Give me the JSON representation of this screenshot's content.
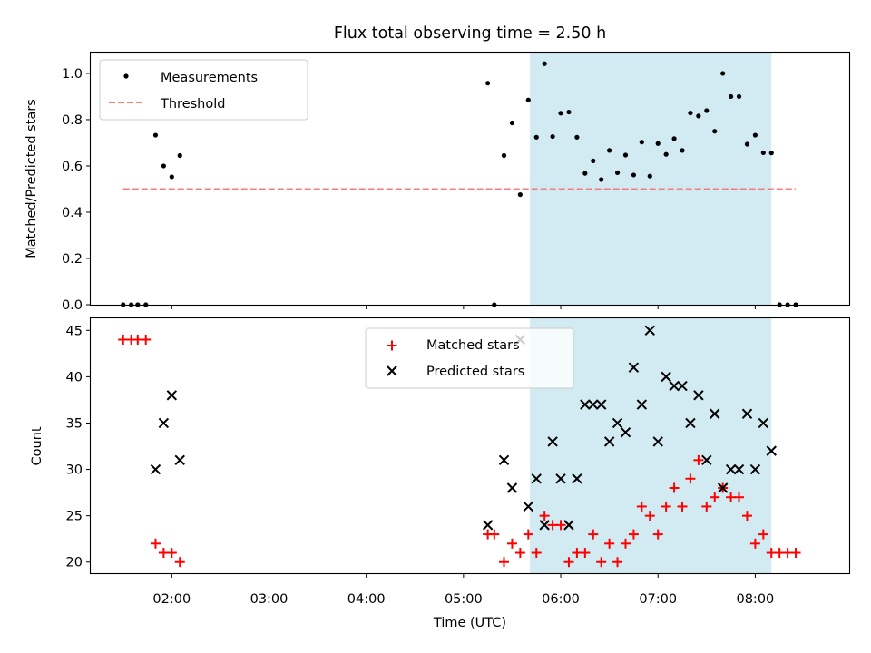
{
  "chart_data": [
    {
      "type": "scatter",
      "title": "Flux total observing time = 2.50 h",
      "ylabel": "Matched/Predicted stars",
      "xlim": [
        "01:10",
        "08:58"
      ],
      "ylim": [
        0,
        1.09
      ],
      "y_ticks": [
        0.0,
        0.2,
        0.4,
        0.6,
        0.8,
        1.0
      ],
      "y_tick_labels": [
        "0.0",
        "0.2",
        "0.4",
        "0.6",
        "0.8",
        "1.0"
      ],
      "grid": false,
      "legend_position": "top-left",
      "observing_span": {
        "start": "05:41",
        "end": "08:10",
        "color": "#add8e6"
      },
      "series": [
        {
          "name": "Measurements",
          "color": "#000000",
          "marker": "dot",
          "points": [
            [
              "01:30",
              0.0
            ],
            [
              "01:35",
              0.0
            ],
            [
              "01:39",
              0.0
            ],
            [
              "01:44",
              0.0
            ],
            [
              "01:50",
              0.733
            ],
            [
              "01:55",
              0.6
            ],
            [
              "02:00",
              0.553
            ],
            [
              "02:05",
              0.645
            ],
            [
              "05:15",
              0.958
            ],
            [
              "05:19",
              0.0
            ],
            [
              "05:25",
              0.645
            ],
            [
              "05:30",
              0.786
            ],
            [
              "05:35",
              0.476
            ],
            [
              "05:40",
              0.885
            ],
            [
              "05:45",
              0.724
            ],
            [
              "05:50",
              1.042
            ],
            [
              "05:55",
              0.727
            ],
            [
              "06:00",
              0.828
            ],
            [
              "06:05",
              0.833
            ],
            [
              "06:10",
              0.724
            ],
            [
              "06:15",
              0.568
            ],
            [
              "06:20",
              0.622
            ],
            [
              "06:25",
              0.541
            ],
            [
              "06:30",
              0.667
            ],
            [
              "06:35",
              0.571
            ],
            [
              "06:40",
              0.647
            ],
            [
              "06:45",
              0.561
            ],
            [
              "06:50",
              0.703
            ],
            [
              "06:55",
              0.556
            ],
            [
              "07:00",
              0.697
            ],
            [
              "07:05",
              0.65
            ],
            [
              "07:10",
              0.718
            ],
            [
              "07:15",
              0.667
            ],
            [
              "07:20",
              0.829
            ],
            [
              "07:25",
              0.816
            ],
            [
              "07:30",
              0.839
            ],
            [
              "07:35",
              0.75
            ],
            [
              "07:40",
              1.0
            ],
            [
              "07:45",
              0.9
            ],
            [
              "07:50",
              0.9
            ],
            [
              "07:55",
              0.694
            ],
            [
              "08:00",
              0.733
            ],
            [
              "08:05",
              0.657
            ],
            [
              "08:10",
              0.656
            ],
            [
              "08:15",
              0.0
            ],
            [
              "08:20",
              0.0
            ],
            [
              "08:25",
              0.0
            ]
          ]
        },
        {
          "name": "Threshold",
          "color": "#f08080",
          "style": "dashed",
          "points": [
            [
              "01:30",
              0.5
            ],
            [
              "08:25",
              0.5
            ]
          ]
        }
      ]
    },
    {
      "type": "scatter",
      "xlabel": "Time (UTC)",
      "ylabel": "Count",
      "xlim": [
        "01:10",
        "08:58"
      ],
      "ylim": [
        18.8,
        46.3
      ],
      "x_ticks": [
        "02:00",
        "03:00",
        "04:00",
        "05:00",
        "06:00",
        "07:00",
        "08:00"
      ],
      "y_ticks": [
        20,
        25,
        30,
        35,
        40,
        45
      ],
      "y_tick_labels": [
        "20",
        "25",
        "30",
        "35",
        "40",
        "45"
      ],
      "grid": false,
      "legend_position": "top-center",
      "observing_span": {
        "start": "05:41",
        "end": "08:10",
        "color": "#add8e6"
      },
      "series": [
        {
          "name": "Matched stars",
          "color": "#ff0000",
          "marker": "plus",
          "points": [
            [
              "01:30",
              44
            ],
            [
              "01:35",
              44
            ],
            [
              "01:39",
              44
            ],
            [
              "01:44",
              44
            ],
            [
              "01:50",
              22
            ],
            [
              "01:55",
              21
            ],
            [
              "02:00",
              21
            ],
            [
              "02:05",
              20
            ],
            [
              "05:15",
              23
            ],
            [
              "05:19",
              23
            ],
            [
              "05:25",
              20
            ],
            [
              "05:30",
              22
            ],
            [
              "05:35",
              21
            ],
            [
              "05:40",
              23
            ],
            [
              "05:45",
              21
            ],
            [
              "05:50",
              25
            ],
            [
              "05:55",
              24
            ],
            [
              "06:00",
              24
            ],
            [
              "06:05",
              20
            ],
            [
              "06:10",
              21
            ],
            [
              "06:15",
              21
            ],
            [
              "06:20",
              23
            ],
            [
              "06:25",
              20
            ],
            [
              "06:30",
              22
            ],
            [
              "06:35",
              20
            ],
            [
              "06:40",
              22
            ],
            [
              "06:45",
              23
            ],
            [
              "06:50",
              26
            ],
            [
              "06:55",
              25
            ],
            [
              "07:00",
              23
            ],
            [
              "07:05",
              26
            ],
            [
              "07:10",
              28
            ],
            [
              "07:15",
              26
            ],
            [
              "07:20",
              29
            ],
            [
              "07:25",
              31
            ],
            [
              "07:30",
              26
            ],
            [
              "07:35",
              27
            ],
            [
              "07:40",
              28
            ],
            [
              "07:45",
              27
            ],
            [
              "07:50",
              27
            ],
            [
              "07:55",
              25
            ],
            [
              "08:00",
              22
            ],
            [
              "08:05",
              23
            ],
            [
              "08:10",
              21
            ],
            [
              "08:15",
              21
            ],
            [
              "08:20",
              21
            ],
            [
              "08:25",
              21
            ]
          ]
        },
        {
          "name": "Predicted stars",
          "color": "#000000",
          "marker": "x",
          "points": [
            [
              "01:50",
              30
            ],
            [
              "01:55",
              35
            ],
            [
              "02:00",
              38
            ],
            [
              "02:05",
              31
            ],
            [
              "05:15",
              24
            ],
            [
              "05:25",
              31
            ],
            [
              "05:30",
              28
            ],
            [
              "05:35",
              44
            ],
            [
              "05:40",
              26
            ],
            [
              "05:45",
              29
            ],
            [
              "05:50",
              24
            ],
            [
              "05:55",
              33
            ],
            [
              "06:00",
              29
            ],
            [
              "06:05",
              24
            ],
            [
              "06:10",
              29
            ],
            [
              "06:15",
              37
            ],
            [
              "06:20",
              37
            ],
            [
              "06:25",
              37
            ],
            [
              "06:30",
              33
            ],
            [
              "06:35",
              35
            ],
            [
              "06:40",
              34
            ],
            [
              "06:45",
              41
            ],
            [
              "06:50",
              37
            ],
            [
              "06:55",
              45
            ],
            [
              "07:00",
              33
            ],
            [
              "07:05",
              40
            ],
            [
              "07:10",
              39
            ],
            [
              "07:15",
              39
            ],
            [
              "07:20",
              35
            ],
            [
              "07:25",
              38
            ],
            [
              "07:30",
              31
            ],
            [
              "07:35",
              36
            ],
            [
              "07:40",
              28
            ],
            [
              "07:45",
              30
            ],
            [
              "07:50",
              30
            ],
            [
              "07:55",
              36
            ],
            [
              "08:00",
              30
            ],
            [
              "08:05",
              35
            ],
            [
              "08:10",
              32
            ]
          ]
        }
      ]
    }
  ]
}
